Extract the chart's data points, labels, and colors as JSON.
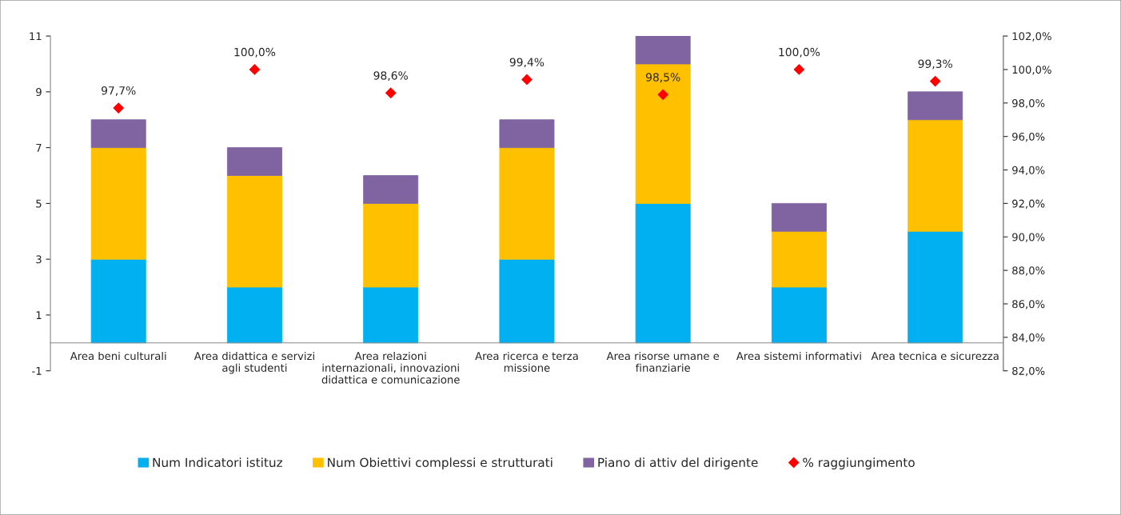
{
  "chart_data": {
    "type": "bar",
    "stacked": true,
    "categories": [
      "Area beni culturali",
      "Area didattica e servizi agli studenti",
      "Area relazioni internazionali, innovazioni didattica e comunicazione",
      "Area ricerca e terza missione",
      "Area risorse umane e finanziarie",
      "Area sistemi informativi",
      "Area tecnica e sicurezza"
    ],
    "series": [
      {
        "name": "Num Indicatori istituz",
        "color": "#00b0f0",
        "values": [
          3,
          2,
          2,
          3,
          5,
          2,
          4
        ]
      },
      {
        "name": "Num Obiettivi complessi e strutturati",
        "color": "#ffc000",
        "values": [
          4,
          4,
          3,
          4,
          5,
          2,
          4
        ]
      },
      {
        "name": "Piano di attiv del dirigente",
        "color": "#8064a2",
        "values": [
          1,
          1,
          1,
          1,
          1,
          1,
          1
        ]
      },
      {
        "name": "% raggiungimento",
        "color": "#ff0000",
        "type": "scatter",
        "axis": "y2",
        "marker": "diamond",
        "values": [
          97.7,
          100.0,
          98.6,
          99.4,
          98.5,
          100.0,
          99.3
        ],
        "value_labels": [
          "97,7%",
          "100,0%",
          "98,6%",
          "99,4%",
          "98,5%",
          "100,0%",
          "99,3%"
        ]
      }
    ],
    "ylim": [
      -1,
      11
    ],
    "yticks": [
      -1,
      1,
      3,
      5,
      7,
      9,
      11
    ],
    "y2lim": [
      82,
      102
    ],
    "y2ticks": [
      {
        "value": 82,
        "label": "82,0%"
      },
      {
        "value": 84,
        "label": "84,0%"
      },
      {
        "value": 86,
        "label": "86,0%"
      },
      {
        "value": 88,
        "label": "88,0%"
      },
      {
        "value": 90,
        "label": "90,0%"
      },
      {
        "value": 92,
        "label": "92,0%"
      },
      {
        "value": 94,
        "label": "94,0%"
      },
      {
        "value": 96,
        "label": "96,0%"
      },
      {
        "value": 98,
        "label": "98,0%"
      },
      {
        "value": 100,
        "label": "100,0%"
      },
      {
        "value": 102,
        "label": "102,0%"
      }
    ],
    "legend": "bottom",
    "grid": false
  }
}
